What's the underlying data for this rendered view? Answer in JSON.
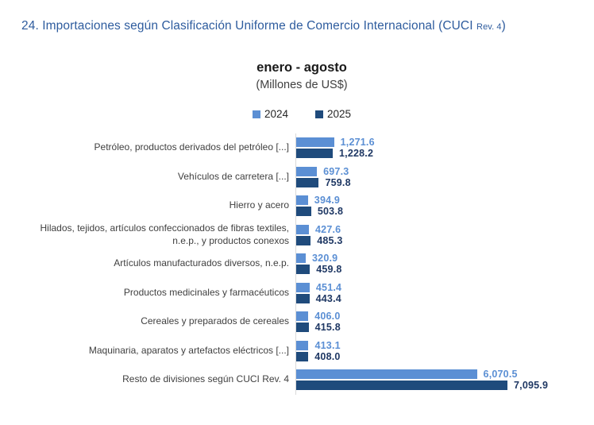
{
  "title": {
    "main": "24. Importaciones según Clasificación Uniforme de Comercio Internacional (CUCI ",
    "rev": "Rev. 4",
    "close": ")"
  },
  "header": {
    "subtitle": "enero - agosto",
    "units": "(Millones de US$)"
  },
  "legend": [
    {
      "label": "2024",
      "color": "#5B8FD4"
    },
    {
      "label": "2025",
      "color": "#1F4B7C"
    }
  ],
  "colors": {
    "title_text": "#2E5C9E",
    "axis_line": "#D9D9D9",
    "category_text": "#404040",
    "value_text_2024": "#5B8FD4",
    "value_text_2025": "#1F3864"
  },
  "chart_data": {
    "type": "bar",
    "orientation": "horizontal",
    "title": "enero - agosto",
    "units": "(Millones de US$)",
    "legend_position": "top",
    "grid": false,
    "xlim": [
      0,
      7500
    ],
    "categories": [
      "Petróleo, productos derivados del petróleo [...]",
      "Vehículos de carretera [...]",
      "Hierro y acero",
      "Hilados, tejidos, artículos confeccionados de fibras textiles, n.e.p., y productos conexos",
      "Artículos manufacturados diversos, n.e.p.",
      "Productos medicinales y farmacéuticos",
      "Cereales y preparados de cereales",
      "Maquinaria, aparatos y artefactos eléctricos [...]",
      "Resto de divisiones según CUCI Rev. 4"
    ],
    "series": [
      {
        "name": "2024",
        "color": "#5B8FD4",
        "values": [
          1271.6,
          697.3,
          394.9,
          427.6,
          320.9,
          451.4,
          406.0,
          413.1,
          6070.5
        ]
      },
      {
        "name": "2025",
        "color": "#1F4B7C",
        "values": [
          1228.2,
          759.8,
          503.8,
          485.3,
          459.8,
          443.4,
          415.8,
          408.0,
          7095.9
        ]
      }
    ]
  }
}
